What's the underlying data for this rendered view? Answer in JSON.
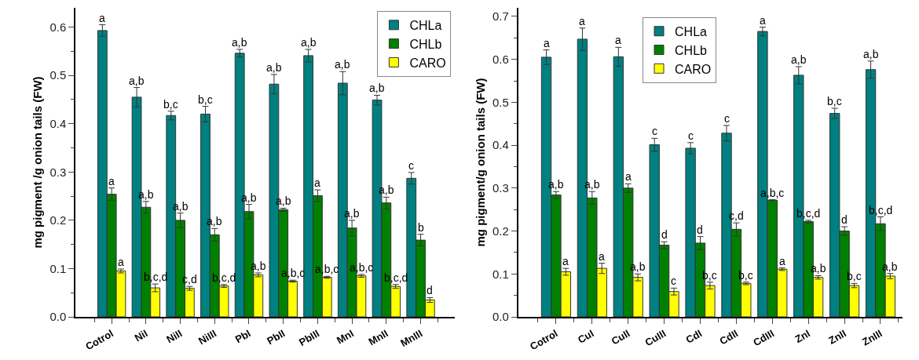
{
  "chart_data": [
    {
      "type": "bar",
      "ylabel": "mg pigment /g onion tails (FW)",
      "categories": [
        "Cotrol",
        "NiI",
        "NiII",
        "NiIII",
        "PbI",
        "PbII",
        "PbIII",
        "MnI",
        "MnII",
        "MnIII"
      ],
      "ylim": [
        0,
        0.64
      ],
      "yticks": [
        {
          "value": 0,
          "label": "0.0"
        },
        {
          "value": 0.05,
          "label": null
        },
        0.1,
        {
          "value": 0.15,
          "label": null
        },
        0.2,
        {
          "value": 0.25,
          "label": null
        },
        0.3,
        {
          "value": 0.35,
          "label": null
        },
        0.4,
        {
          "value": 0.45,
          "label": null
        },
        0.5,
        {
          "value": 0.55,
          "label": null
        },
        0.6
      ],
      "legend": "top right",
      "series": [
        {
          "name": "CHLa",
          "color": "#008080",
          "values": [
            0.593,
            0.455,
            0.417,
            0.42,
            0.546,
            0.482,
            0.541,
            0.484,
            0.449,
            0.287
          ],
          "errors": [
            0.012,
            0.02,
            0.009,
            0.016,
            0.008,
            0.02,
            0.013,
            0.024,
            0.01,
            0.012
          ],
          "value_labels": [
            "a",
            "a,b",
            "b,c",
            "b,c",
            "a,b",
            "a,b",
            "a,b",
            "a,b",
            "a,b",
            "c"
          ]
        },
        {
          "name": "CHLb",
          "color": "#008000",
          "values": [
            0.254,
            0.227,
            0.2,
            0.17,
            0.218,
            0.222,
            0.251,
            0.184,
            0.236,
            0.159
          ],
          "errors": [
            0.013,
            0.012,
            0.015,
            0.013,
            0.015,
            0.003,
            0.012,
            0.016,
            0.012,
            0.012
          ],
          "value_labels": [
            "a",
            "a,b",
            "a,b",
            "a,b",
            "a,b",
            "a,b",
            "a",
            "a,b",
            "a,b",
            "b"
          ]
        },
        {
          "name": "CARO",
          "color": "#ffff00",
          "values": [
            0.095,
            0.06,
            0.059,
            0.064,
            0.087,
            0.074,
            0.082,
            0.085,
            0.063,
            0.035
          ],
          "errors": [
            0.004,
            0.008,
            0.004,
            0.003,
            0.004,
            0.002,
            0.002,
            0.003,
            0.004,
            0.005
          ],
          "value_labels": [
            "a",
            "b,c,d",
            "c,d",
            "b,c,d",
            "a,b",
            "a,b,c",
            "a,b,c",
            "a,b,c",
            "b,c,d",
            "d"
          ]
        }
      ]
    },
    {
      "type": "bar",
      "ylabel": "mg pigment/g onion tails (FW)",
      "categories": [
        "Cotrol",
        "CuI",
        "CuII",
        "CuIII",
        "CdI",
        "CdII",
        "CdIII",
        "ZnI",
        "ZnII",
        "ZnIII"
      ],
      "ylim": [
        0,
        0.72
      ],
      "yticks": [
        {
          "value": 0,
          "label": "0.0"
        },
        {
          "value": 0.05,
          "label": null
        },
        0.1,
        {
          "value": 0.15,
          "label": null
        },
        0.2,
        {
          "value": 0.25,
          "label": null
        },
        0.3,
        {
          "value": 0.35,
          "label": null
        },
        0.4,
        {
          "value": 0.45,
          "label": null
        },
        0.5,
        {
          "value": 0.55,
          "label": null
        },
        0.6,
        {
          "value": 0.65,
          "label": null
        },
        0.7
      ],
      "legend": "top",
      "series": [
        {
          "name": "CHLa",
          "color": "#008080",
          "values": [
            0.605,
            0.647,
            0.606,
            0.401,
            0.393,
            0.428,
            0.665,
            0.563,
            0.474,
            0.576
          ],
          "errors": [
            0.017,
            0.026,
            0.022,
            0.015,
            0.013,
            0.018,
            0.01,
            0.02,
            0.012,
            0.02
          ],
          "value_labels": [
            "a",
            "a",
            "a",
            "c",
            "c",
            "c",
            "a",
            "a,b",
            "b,c",
            "a,b"
          ]
        },
        {
          "name": "CHLb",
          "color": "#008000",
          "values": [
            0.284,
            0.277,
            0.3,
            0.167,
            0.172,
            0.204,
            0.272,
            0.222,
            0.2,
            0.217
          ],
          "errors": [
            0.008,
            0.015,
            0.01,
            0.008,
            0.015,
            0.015,
            0.001,
            0.003,
            0.01,
            0.016
          ],
          "value_labels": [
            "a,b",
            "a,b",
            "a",
            "d",
            "d",
            "c,d",
            "a,b,c",
            "b,c,d",
            "d",
            "b,c,d"
          ]
        },
        {
          "name": "CARO",
          "color": "#ffff00",
          "values": [
            0.105,
            0.113,
            0.092,
            0.059,
            0.073,
            0.078,
            0.111,
            0.092,
            0.073,
            0.095
          ],
          "errors": [
            0.008,
            0.012,
            0.008,
            0.008,
            0.008,
            0.003,
            0.003,
            0.004,
            0.005,
            0.006
          ],
          "value_labels": [
            "a",
            "a",
            "a,b",
            "c",
            "b,c",
            "b,c",
            "a",
            "a,b",
            "b,c",
            "a,b"
          ]
        }
      ]
    }
  ]
}
